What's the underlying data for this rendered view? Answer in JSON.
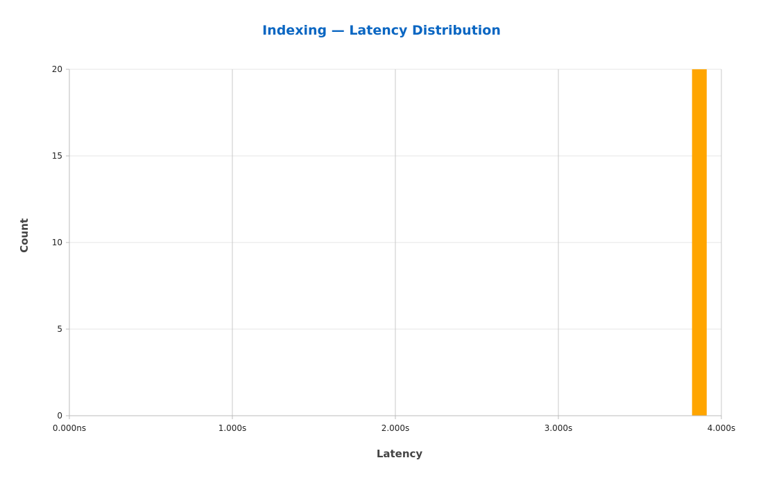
{
  "chart_data": {
    "type": "bar",
    "title": "Indexing — Latency Distribution",
    "xlabel": "Latency",
    "ylabel": "Count",
    "x_unit": "seconds",
    "xlim": [
      0,
      4
    ],
    "ylim": [
      0,
      20
    ],
    "x_ticks": [
      0,
      1,
      2,
      3,
      4
    ],
    "x_tick_labels": [
      "0.000ns",
      "1.000s",
      "2.000s",
      "3.000s",
      "4.000s"
    ],
    "y_ticks": [
      0,
      5,
      10,
      15,
      20
    ],
    "y_tick_labels": [
      "0",
      "5",
      "10",
      "15",
      "20"
    ],
    "bins": [
      {
        "x_start": 3.82,
        "x_end": 3.91,
        "count": 20
      }
    ],
    "grid": {
      "x": true,
      "y": true
    },
    "legend": "none"
  },
  "colors": {
    "title": "#0a66c2",
    "bar": "#ffa500",
    "grid_x": "#c8c8c8",
    "grid_y": "#e6e6e6",
    "axis": "#bbbbbb"
  }
}
